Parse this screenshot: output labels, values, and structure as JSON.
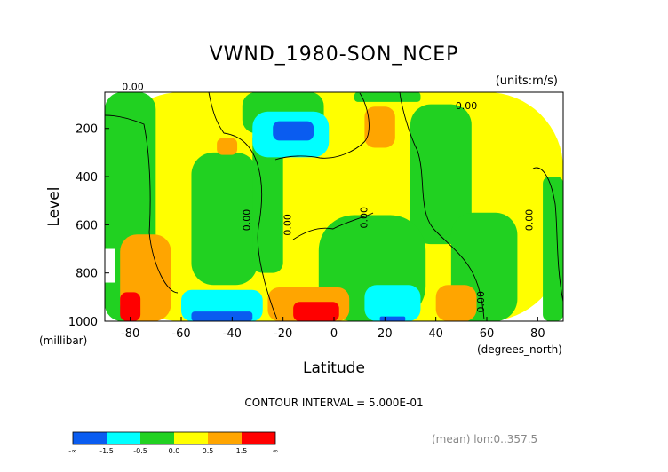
{
  "chart_data": {
    "type": "heatmap",
    "title": "VWND_1980-SON_NCEP",
    "units": "(units:m/s)",
    "xlabel": "Latitude",
    "xunits": "(degrees_north)",
    "ylabel": "Level",
    "yunits": "(millibar)",
    "xlim": [
      -90,
      90
    ],
    "ylim": [
      1000,
      50
    ],
    "x_ticks": [
      "-80",
      "-60",
      "-40",
      "-20",
      "0",
      "20",
      "40",
      "60",
      "80"
    ],
    "y_ticks": [
      "200",
      "400",
      "600",
      "800",
      "1000"
    ],
    "contour_interval": "CONTOUR INTERVAL = 5.000E-01",
    "mean_note": "(mean) lon:0..357.5",
    "colorbar": {
      "labels": [
        "-∞",
        "-1.5",
        "-0.5",
        "0.0",
        "0.5",
        "1.5",
        "∞"
      ],
      "colors": [
        "#0a5cf0",
        "#00ffff",
        "#21d121",
        "#ffff00",
        "#ffa500",
        "#ff0000"
      ],
      "bounds": [
        "-∞ to -1.5",
        "-1.5 to -0.5",
        "-0.5 to 0.0",
        "0.0 to 0.5",
        "0.5 to 1.5",
        "1.5 to ∞"
      ]
    },
    "contour_labels": [
      {
        "text": "0.00",
        "lat": -79,
        "lev": 40
      },
      {
        "text": "0.00",
        "lat": 52,
        "lev": 120
      },
      {
        "text": "0.00",
        "lat": -33,
        "lev": 580
      },
      {
        "text": "0.00",
        "lat": -17,
        "lev": 600
      },
      {
        "text": "0.00",
        "lat": 13,
        "lev": 570
      },
      {
        "text": "0.00",
        "lat": 59,
        "lev": 920
      },
      {
        "text": "0.00",
        "lat": 78,
        "lev": 580
      }
    ],
    "regions": [
      {
        "value_range": "0.0 to 0.5",
        "lat": [
          -90,
          90
        ],
        "lev": [
          50,
          1000
        ]
      },
      {
        "value_range": "-0.5 to 0.0",
        "lat": [
          -90,
          -70
        ],
        "lev": [
          50,
          1000
        ]
      },
      {
        "value_range": "-0.5 to 0.0",
        "lat": [
          -56,
          -30
        ],
        "lev": [
          300,
          850
        ]
      },
      {
        "value_range": "-0.5 to 0.0",
        "lat": [
          -36,
          -4
        ],
        "lev": [
          50,
          220
        ]
      },
      {
        "value_range": "-0.5 to 0.0",
        "lat": [
          -32,
          -20
        ],
        "lev": [
          200,
          800
        ]
      },
      {
        "value_range": "-0.5 to 0.0",
        "lat": [
          8,
          34
        ],
        "lev": [
          50,
          90
        ]
      },
      {
        "value_range": "-0.5 to 0.0",
        "lat": [
          30,
          54
        ],
        "lev": [
          100,
          680
        ]
      },
      {
        "value_range": "-0.5 to 0.0",
        "lat": [
          82,
          90
        ],
        "lev": [
          400,
          1000
        ]
      },
      {
        "value_range": "-0.5 to 0.0",
        "lat": [
          -6,
          36
        ],
        "lev": [
          560,
          1000
        ]
      },
      {
        "value_range": "-0.5 to 0.0",
        "lat": [
          46,
          72
        ],
        "lev": [
          550,
          1000
        ]
      },
      {
        "value_range": "-1.5 to -0.5",
        "lat": [
          -32,
          -2
        ],
        "lev": [
          130,
          320
        ]
      },
      {
        "value_range": "-∞ to -1.5",
        "lat": [
          -24,
          -8
        ],
        "lev": [
          170,
          250
        ]
      },
      {
        "value_range": "-1.5 to -0.5",
        "lat": [
          -60,
          -28
        ],
        "lev": [
          870,
          1000
        ]
      },
      {
        "value_range": "-∞ to -1.5",
        "lat": [
          -56,
          -32
        ],
        "lev": [
          960,
          1000
        ]
      },
      {
        "value_range": "-1.5 to -0.5",
        "lat": [
          12,
          34
        ],
        "lev": [
          850,
          1000
        ]
      },
      {
        "value_range": "-∞ to -1.5",
        "lat": [
          18,
          28
        ],
        "lev": [
          980,
          1000
        ]
      },
      {
        "value_range": "0.5 to 1.5",
        "lat": [
          -26,
          6
        ],
        "lev": [
          860,
          1000
        ]
      },
      {
        "value_range": "1.5 to ∞",
        "lat": [
          -16,
          2
        ],
        "lev": [
          920,
          1000
        ]
      },
      {
        "value_range": "0.5 to 1.5",
        "lat": [
          -84,
          -64
        ],
        "lev": [
          640,
          1000
        ]
      },
      {
        "value_range": "1.5 to ∞",
        "lat": [
          -84,
          -76
        ],
        "lev": [
          880,
          1000
        ]
      },
      {
        "value_range": "0.5 to 1.5",
        "lat": [
          -46,
          -38
        ],
        "lev": [
          240,
          310
        ]
      },
      {
        "value_range": "0.5 to 1.5",
        "lat": [
          12,
          24
        ],
        "lev": [
          110,
          280
        ]
      },
      {
        "value_range": "0.5 to 1.5",
        "lat": [
          40,
          56
        ],
        "lev": [
          850,
          1000
        ]
      }
    ]
  }
}
